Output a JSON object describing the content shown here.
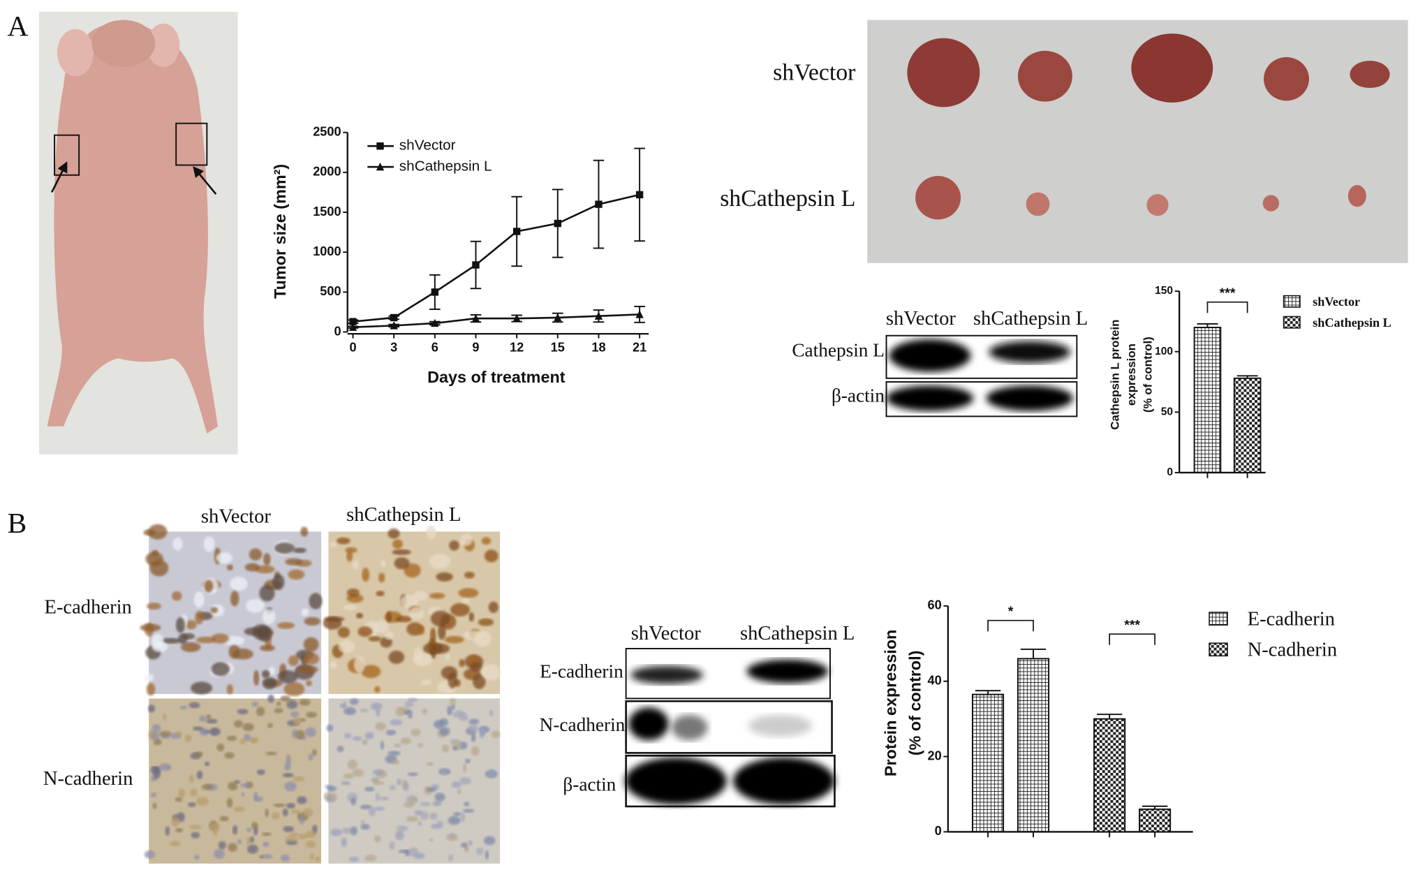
{
  "panel_labels": [
    "A",
    "B"
  ],
  "tumor_photo": {
    "rows": [
      "shVector",
      "shCathepsin L"
    ]
  },
  "blot_a": {
    "columns": [
      "shVector",
      "shCathepsin L"
    ],
    "rows": [
      "Cathepsin L",
      "β-actin"
    ]
  },
  "ihc": {
    "columns": [
      "shVector",
      "shCathepsin L"
    ],
    "rows": [
      "E-cadherin",
      "N-cadherin"
    ]
  },
  "blot_b": {
    "columns": [
      "shVector",
      "shCathepsin L"
    ],
    "rows": [
      "E-cadherin",
      "N-cadherin",
      "β-actin"
    ]
  },
  "chart_data": [
    {
      "type": "line",
      "ylabel": "Tumor size (mm²)",
      "xlabel": "Days of treatment",
      "x": [
        0,
        3,
        6,
        9,
        12,
        15,
        18,
        21
      ],
      "xlim": [
        0,
        21
      ],
      "xticks": [
        0,
        3,
        6,
        9,
        12,
        15,
        18,
        21
      ],
      "ylim": [
        0,
        2500
      ],
      "yticks": [
        0,
        500,
        1000,
        1500,
        2000,
        2500
      ],
      "legend": "upper left",
      "series": [
        {
          "name": "shVector",
          "color": "#111111",
          "marker": "square",
          "values": [
            130,
            180,
            500,
            840,
            1260,
            1360,
            1600,
            1720
          ],
          "errors": [
            20,
            20,
            215,
            295,
            435,
            425,
            550,
            580
          ]
        },
        {
          "name": "shCathepsin L",
          "color": "#111111",
          "marker": "triangle",
          "values": [
            60,
            80,
            110,
            170,
            170,
            180,
            200,
            220
          ],
          "errors": [
            10,
            15,
            20,
            45,
            40,
            55,
            75,
            100
          ]
        }
      ]
    },
    {
      "type": "bar",
      "ylabel": [
        "Cathepsin L protein",
        "expression",
        "(% of control)"
      ],
      "categories": [
        null,
        null
      ],
      "ylim": [
        0,
        150
      ],
      "yticks": [
        0,
        50,
        100,
        150
      ],
      "legend": "right",
      "annotations": [
        "***"
      ],
      "series": [
        {
          "name": "shVector",
          "color": "#111111",
          "pattern": "crosshatch",
          "values": [
            120,
            null
          ],
          "errors": [
            3,
            null
          ]
        },
        {
          "name": "shCathepsin L",
          "color": "#111111",
          "pattern": "checker",
          "values": [
            null,
            78
          ],
          "errors": [
            null,
            2
          ]
        }
      ]
    },
    {
      "type": "bar",
      "ylabel": [
        "Protein expression",
        "(% of control)"
      ],
      "categories": [
        null,
        null,
        null,
        null
      ],
      "ylim": [
        0,
        60
      ],
      "yticks": [
        0,
        20,
        40,
        60
      ],
      "legend": "right",
      "annotations": [
        "*",
        "***"
      ],
      "series": [
        {
          "name": "E-cadherin",
          "color": "#111111",
          "pattern": "crosshatch",
          "values": [
            36.5,
            46,
            null,
            null
          ],
          "errors": [
            1,
            2.5,
            null,
            null
          ]
        },
        {
          "name": "N-cadherin",
          "color": "#111111",
          "pattern": "checker",
          "values": [
            null,
            null,
            30,
            6
          ],
          "errors": [
            null,
            null,
            1.2,
            0.8
          ]
        }
      ]
    }
  ]
}
